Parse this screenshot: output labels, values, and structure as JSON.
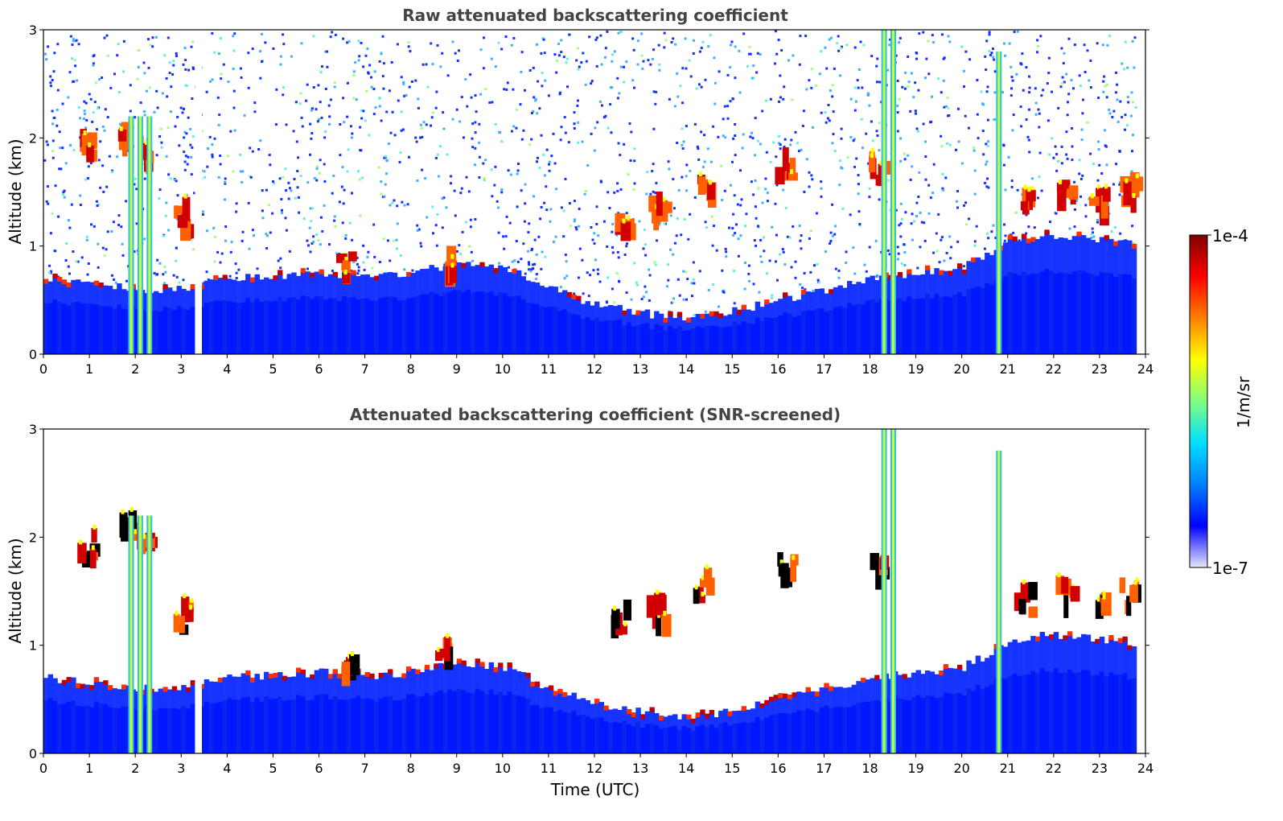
{
  "chart_data": [
    {
      "type": "heatmap",
      "title": "Raw attenuated backscattering coefficient",
      "xlabel": "",
      "ylabel": "Altitude (km)",
      "xlim": [
        0,
        24
      ],
      "ylim": [
        0,
        3
      ],
      "x_ticks": [
        "0",
        "1",
        "2",
        "3",
        "4",
        "5",
        "6",
        "7",
        "8",
        "9",
        "10",
        "11",
        "12",
        "13",
        "14",
        "15",
        "16",
        "17",
        "18",
        "19",
        "20",
        "21",
        "22",
        "23",
        "24"
      ],
      "y_ticks": [
        "0",
        "1",
        "2",
        "3"
      ],
      "boundary_layer_top_km": [
        [
          0.0,
          0.7
        ],
        [
          1.0,
          0.65
        ],
        [
          2.0,
          0.6
        ],
        [
          3.0,
          0.6
        ],
        [
          4.0,
          0.7
        ],
        [
          5.0,
          0.72
        ],
        [
          6.0,
          0.75
        ],
        [
          7.0,
          0.72
        ],
        [
          8.0,
          0.75
        ],
        [
          9.0,
          0.85
        ],
        [
          10.0,
          0.8
        ],
        [
          11.0,
          0.6
        ],
        [
          12.0,
          0.45
        ],
        [
          13.0,
          0.38
        ],
        [
          14.0,
          0.32
        ],
        [
          15.0,
          0.4
        ],
        [
          16.0,
          0.5
        ],
        [
          17.0,
          0.6
        ],
        [
          18.0,
          0.7
        ],
        [
          19.0,
          0.75
        ],
        [
          20.0,
          0.8
        ],
        [
          20.7,
          0.95
        ],
        [
          21.0,
          1.05
        ],
        [
          22.0,
          1.1
        ],
        [
          23.0,
          1.05
        ],
        [
          23.8,
          1.0
        ]
      ],
      "cloud_features": [
        {
          "t": 0.9,
          "alt_km": 1.9
        },
        {
          "t": 1.8,
          "alt_km": 2.05
        },
        {
          "t": 2.2,
          "alt_km": 1.9
        },
        {
          "t": 3.0,
          "alt_km": 1.25
        },
        {
          "t": 6.5,
          "alt_km": 0.78
        },
        {
          "t": 8.7,
          "alt_km": 0.85
        },
        {
          "t": 12.5,
          "alt_km": 1.25
        },
        {
          "t": 13.3,
          "alt_km": 1.3
        },
        {
          "t": 14.3,
          "alt_km": 1.55
        },
        {
          "t": 16.1,
          "alt_km": 1.7
        },
        {
          "t": 18.1,
          "alt_km": 1.7
        },
        {
          "t": 21.3,
          "alt_km": 1.4
        },
        {
          "t": 22.2,
          "alt_km": 1.45
        },
        {
          "t": 22.9,
          "alt_km": 1.4
        },
        {
          "t": 23.6,
          "alt_km": 1.45
        }
      ],
      "precipitation_columns_utc": [
        1.9,
        2.1,
        2.3,
        18.3,
        18.5,
        20.8
      ],
      "data_gaps_utc": [
        [
          3.3,
          3.45
        ]
      ]
    },
    {
      "type": "heatmap",
      "title": "Attenuated backscattering coefficient (SNR-screened)",
      "xlabel": "Time (UTC)",
      "ylabel": "Altitude (km)",
      "xlim": [
        0,
        24
      ],
      "ylim": [
        0,
        3
      ],
      "x_ticks": [
        "0",
        "1",
        "2",
        "3",
        "4",
        "5",
        "6",
        "7",
        "8",
        "9",
        "10",
        "11",
        "12",
        "13",
        "14",
        "15",
        "16",
        "17",
        "18",
        "19",
        "20",
        "21",
        "22",
        "23",
        "24"
      ],
      "y_ticks": [
        "0",
        "1",
        "2",
        "3"
      ]
    }
  ],
  "colorbar": {
    "label": "1/m/sr",
    "max_label": "1e-4",
    "min_label": "1e-7",
    "scale": "log",
    "range": [
      1e-07,
      0.0001
    ],
    "colors": [
      "#e8e8f8",
      "#0000ff",
      "#0080ff",
      "#00e0ff",
      "#80ff80",
      "#ffff00",
      "#ff8000",
      "#ff0000",
      "#800000"
    ]
  }
}
